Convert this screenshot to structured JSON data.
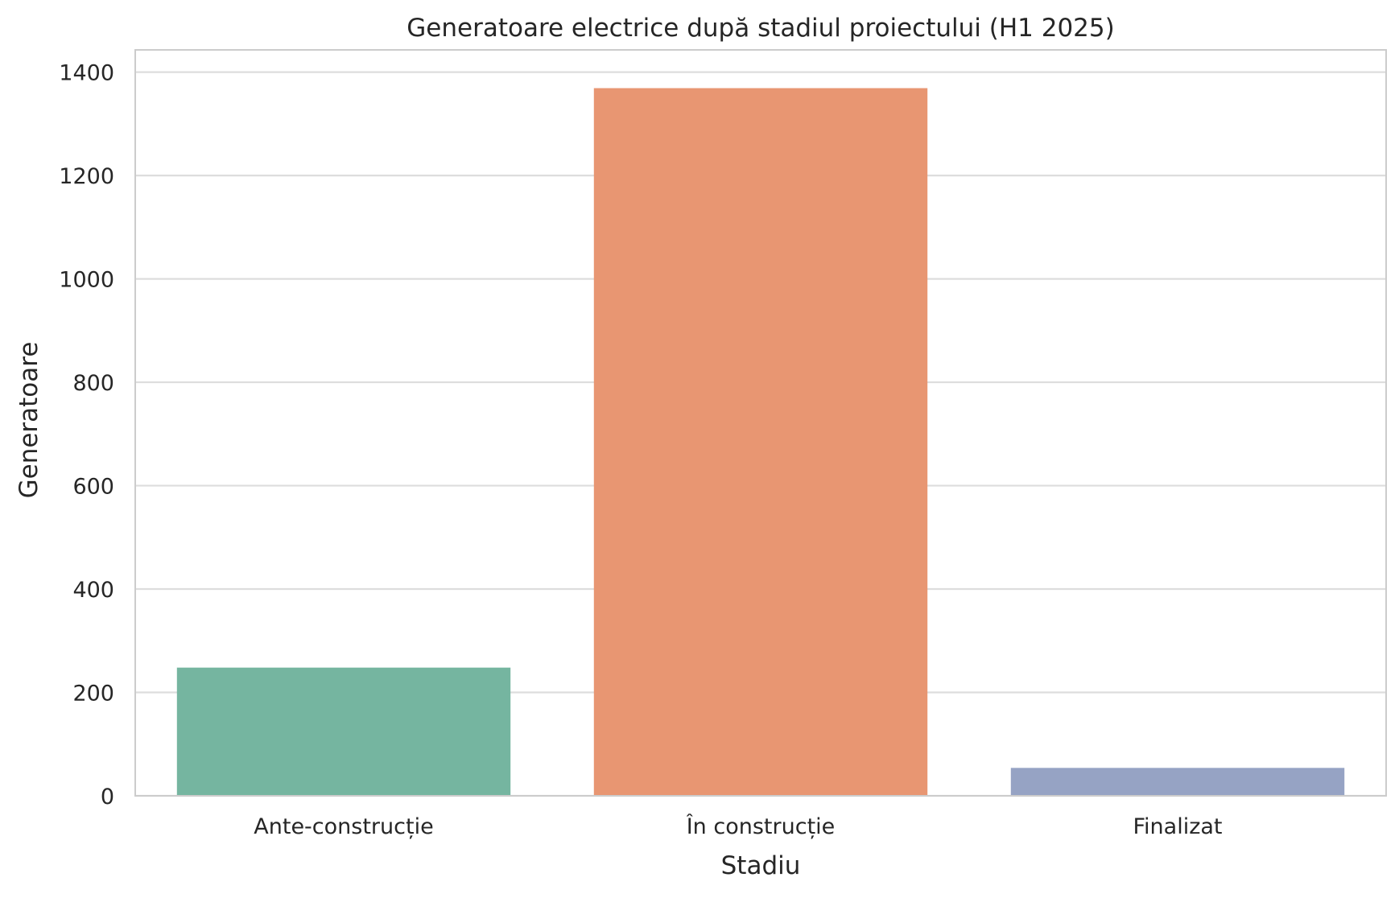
{
  "chart_data": {
    "type": "bar",
    "title": "Generatoare electrice după stadiul proiectului (H1 2025)",
    "xlabel": "Stadiu",
    "ylabel": "Generatoare",
    "categories": [
      "Ante-construcție",
      "În construcție",
      "Finalizat"
    ],
    "values": [
      248,
      1369,
      54
    ],
    "colors": [
      "#75b5a0",
      "#e89672",
      "#96a3c4"
    ],
    "ylim": [
      0,
      1443
    ],
    "yticks": [
      0,
      200,
      400,
      600,
      800,
      1000,
      1200,
      1400
    ],
    "grid": true,
    "legend": "none"
  }
}
